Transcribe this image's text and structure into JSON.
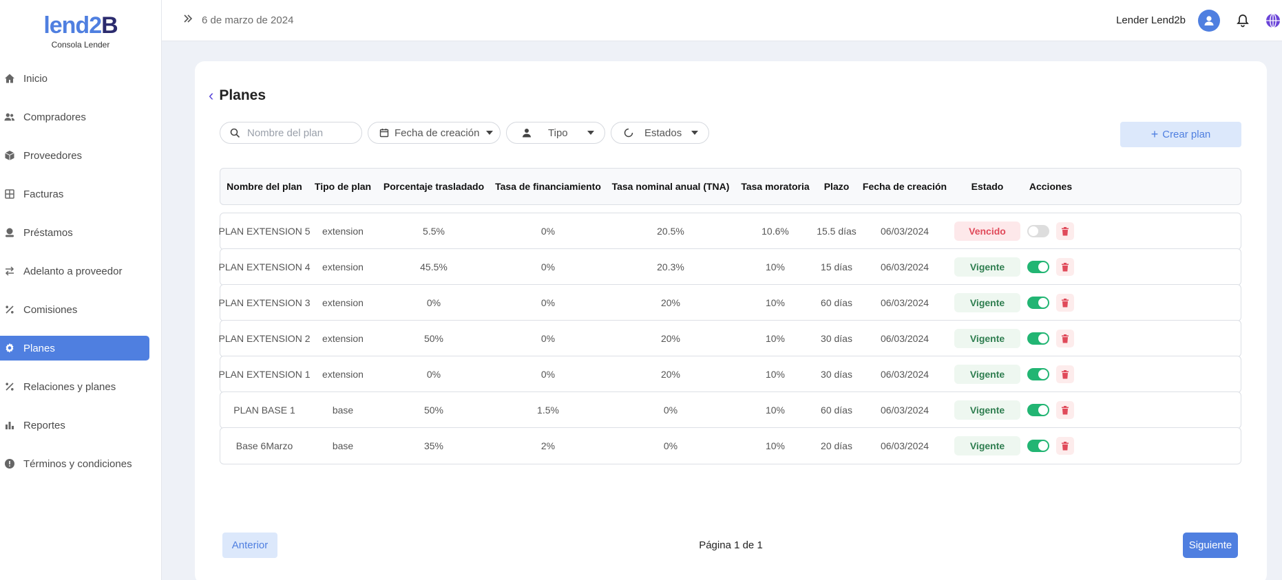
{
  "brand": {
    "logo": "lend2B",
    "subtitle": "Consola Lender"
  },
  "sidebar": {
    "items": [
      {
        "label": "Inicio",
        "icon": "home-icon"
      },
      {
        "label": "Compradores",
        "icon": "users-icon"
      },
      {
        "label": "Proveedores",
        "icon": "box-icon"
      },
      {
        "label": "Facturas",
        "icon": "grid-icon"
      },
      {
        "label": "Préstamos",
        "icon": "money-hand-icon"
      },
      {
        "label": "Adelanto a proveedor",
        "icon": "swap-icon"
      },
      {
        "label": "Comisiones",
        "icon": "percent-icon"
      },
      {
        "label": "Planes",
        "icon": "gear-icon",
        "active": true
      },
      {
        "label": "Relaciones y planes",
        "icon": "percent-icon"
      },
      {
        "label": "Reportes",
        "icon": "bar-chart-icon"
      },
      {
        "label": "Términos y condiciones",
        "icon": "info-icon"
      }
    ]
  },
  "header": {
    "date": "6 de marzo de 2024",
    "user": "Lender Lend2b"
  },
  "page": {
    "title": "Planes",
    "filters": {
      "search_placeholder": "Nombre del plan",
      "fecha_label": "Fecha de creación",
      "tipo_label": "Tipo",
      "estados_label": "Estados"
    },
    "create_label": "Crear plan"
  },
  "table": {
    "columns": [
      "Nombre del plan",
      "Tipo de plan",
      "Porcentaje trasladado",
      "Tasa de financiamiento",
      "Tasa nominal anual (TNA)",
      "Tasa moratoria",
      "Plazo",
      "Fecha de creación",
      "Estado",
      "Acciones"
    ],
    "rows": [
      {
        "name": "PLAN EXTENSION 5",
        "type": "extension",
        "pct": "5.5%",
        "fin": "0%",
        "tna": "20.5%",
        "mora": "10.6%",
        "plazo_num": "15.5",
        "plazo_unit": "días",
        "fecha": "06/03/2024",
        "estado": "Vencido",
        "active": false
      },
      {
        "name": "PLAN EXTENSION 4",
        "type": "extension",
        "pct": "45.5%",
        "fin": "0%",
        "tna": "20.3%",
        "mora": "10%",
        "plazo_num": "15",
        "plazo_unit": "días",
        "fecha": "06/03/2024",
        "estado": "Vigente",
        "active": true
      },
      {
        "name": "PLAN EXTENSION 3",
        "type": "extension",
        "pct": "0%",
        "fin": "0%",
        "tna": "20%",
        "mora": "10%",
        "plazo_num": "60",
        "plazo_unit": "días",
        "fecha": "06/03/2024",
        "estado": "Vigente",
        "active": true
      },
      {
        "name": "PLAN EXTENSION 2",
        "type": "extension",
        "pct": "50%",
        "fin": "0%",
        "tna": "20%",
        "mora": "10%",
        "plazo_num": "30",
        "plazo_unit": "días",
        "fecha": "06/03/2024",
        "estado": "Vigente",
        "active": true
      },
      {
        "name": "PLAN EXTENSION 1",
        "type": "extension",
        "pct": "0%",
        "fin": "0%",
        "tna": "20%",
        "mora": "10%",
        "plazo_num": "30",
        "plazo_unit": "días",
        "fecha": "06/03/2024",
        "estado": "Vigente",
        "active": true
      },
      {
        "name": "PLAN BASE 1",
        "type": "base",
        "pct": "50%",
        "fin": "1.5%",
        "tna": "0%",
        "mora": "10%",
        "plazo_num": "60",
        "plazo_unit": "días",
        "fecha": "06/03/2024",
        "estado": "Vigente",
        "active": true
      },
      {
        "name": "Base 6Marzo",
        "type": "base",
        "pct": "35%",
        "fin": "2%",
        "tna": "0%",
        "mora": "10%",
        "plazo_num": "20",
        "plazo_unit": "días",
        "fecha": "06/03/2024",
        "estado": "Vigente",
        "active": true
      }
    ]
  },
  "pagination": {
    "prev": "Anterior",
    "page_text": "Página 1 de 1",
    "next": "Siguiente"
  },
  "colors": {
    "accent": "#4f7fe0",
    "success": "#22b573",
    "danger": "#e04a5a"
  }
}
